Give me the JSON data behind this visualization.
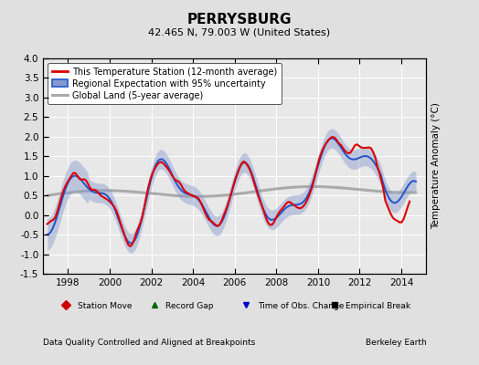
{
  "title": "PERRYSBURG",
  "subtitle": "42.465 N, 79.003 W (United States)",
  "footer_left": "Data Quality Controlled and Aligned at Breakpoints",
  "footer_right": "Berkeley Earth",
  "xlabel_years": [
    1998,
    2000,
    2002,
    2004,
    2006,
    2008,
    2010,
    2012,
    2014
  ],
  "ylim": [
    -1.5,
    4.0
  ],
  "yticks": [
    -1.5,
    -1.0,
    -0.5,
    0.0,
    0.5,
    1.0,
    1.5,
    2.0,
    2.5,
    3.0,
    3.5,
    4.0
  ],
  "xlim_start": 1996.8,
  "xlim_end": 2015.2,
  "ylabel": "Temperature Anomaly (°C)",
  "bg_color": "#e0e0e0",
  "plot_bg_color": "#e8e8e8",
  "legend_label_station": "This Temperature Station (12-month average)",
  "legend_label_regional": "Regional Expectation with 95% uncertainty",
  "legend_label_global": "Global Land (5-year average)",
  "marker_labels": [
    "Station Move",
    "Record Gap",
    "Time of Obs. Change",
    "Empirical Break"
  ],
  "marker_colors": [
    "#cc0000",
    "#006600",
    "#0000cc",
    "#000000"
  ],
  "marker_shapes": [
    "D",
    "^",
    "v",
    "s"
  ],
  "station_color": "#dd0000",
  "regional_color": "#2255cc",
  "regional_fill_color": "#8899cc",
  "global_color": "#aaaaaa",
  "title_fontsize": 11,
  "subtitle_fontsize": 8,
  "tick_fontsize": 7.5,
  "legend_fontsize": 7,
  "footer_fontsize": 6.5
}
